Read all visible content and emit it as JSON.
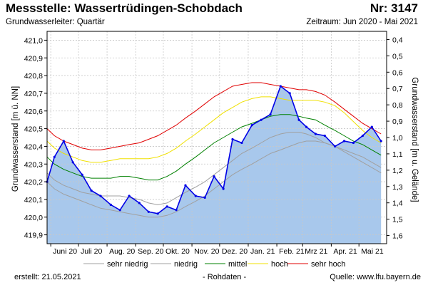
{
  "header": {
    "title": "Messstelle: Wassertrüdingen-Schobdach",
    "number": "Nr: 3147",
    "aquifer": "Grundwasserleiter: Quartär",
    "period": "Zeitraum: Jun 2020 - Mai 2021"
  },
  "footer": {
    "created": "erstellt:  21.05.2021",
    "rawdata": "- Rohdaten -",
    "source": "Quelle: www.lfu.bayern.de"
  },
  "colors": {
    "area": "#a8c8ec",
    "measured": "#0000e6",
    "sehr_niedrig": "#a0a0a0",
    "niedrig": "#a0a0a0",
    "mittel": "#008000",
    "hoch": "#f0e000",
    "sehr_hoch": "#e00000",
    "grid": "#c8c8c8"
  },
  "chart_data": {
    "type": "line",
    "title": "",
    "ylabel": "Grundwasserstand [m ü. NN]",
    "ylabel_right": "Grundwasserstand [m u. Gelände]",
    "ylim": [
      419.85,
      421.05
    ],
    "ylim_right": [
      1.65,
      0.35
    ],
    "yticks": [
      "421,0",
      "420,9",
      "420,8",
      "420,7",
      "420,6",
      "420,5",
      "420,4",
      "420,3",
      "420,2",
      "420,1",
      "420,0",
      "419,9"
    ],
    "yticks_right": [
      "0,4",
      "0,5",
      "0,6",
      "0,7",
      "0,8",
      "0,9",
      "1,0",
      "1,1",
      "1,2",
      "1,3",
      "1,4",
      "1,5",
      "1,6"
    ],
    "xtick_labels": [
      "Juni 20",
      "Juli 20",
      "Aug. 20",
      "Sep. 20",
      "Okt. 20",
      "Nov. 20",
      "Dez. 20",
      "Jan. 21",
      "Feb. 21",
      "Mrz 21",
      "Apr. 21",
      "Mai 21"
    ],
    "legend": {
      "placement": "bottom",
      "labels": [
        "sehr niedrig",
        "niedrig",
        "mittel",
        "hoch",
        "sehr hoch"
      ]
    },
    "x": [
      "2020-05-28",
      "2020-06-05",
      "2020-06-15",
      "2020-06-25",
      "2020-07-05",
      "2020-07-15",
      "2020-07-25",
      "2020-08-05",
      "2020-08-15",
      "2020-08-25",
      "2020-09-05",
      "2020-09-15",
      "2020-09-25",
      "2020-10-05",
      "2020-10-15",
      "2020-10-25",
      "2020-11-05",
      "2020-11-15",
      "2020-11-25",
      "2020-12-05",
      "2020-12-15",
      "2020-12-25",
      "2021-01-05",
      "2021-01-15",
      "2021-01-25",
      "2021-02-05",
      "2021-02-15",
      "2021-02-25",
      "2021-03-05",
      "2021-03-15",
      "2021-03-25",
      "2021-04-05",
      "2021-04-15",
      "2021-04-25",
      "2021-05-05",
      "2021-05-15",
      "2021-05-25"
    ],
    "series": [
      {
        "name": "sehr niedrig",
        "values": [
          420.2,
          420.16,
          420.13,
          420.11,
          420.09,
          420.07,
          420.05,
          420.04,
          420.03,
          420.02,
          420.01,
          420.0,
          420.0,
          420.01,
          420.03,
          420.06,
          420.09,
          420.12,
          420.16,
          420.2,
          420.24,
          420.27,
          420.3,
          420.33,
          420.36,
          420.38,
          420.4,
          420.42,
          420.43,
          420.43,
          420.42,
          420.4,
          420.37,
          420.34,
          420.31,
          420.28,
          420.25
        ]
      },
      {
        "name": "niedrig",
        "values": [
          420.25,
          420.21,
          420.18,
          420.16,
          420.14,
          420.13,
          420.12,
          420.12,
          420.12,
          420.11,
          420.1,
          420.08,
          420.07,
          420.08,
          420.11,
          420.14,
          420.17,
          420.2,
          420.24,
          420.28,
          420.32,
          420.36,
          420.39,
          420.42,
          420.45,
          420.47,
          420.48,
          420.48,
          420.47,
          420.45,
          420.42,
          420.4,
          420.38,
          420.36,
          420.34,
          420.31,
          420.28
        ]
      },
      {
        "name": "mittel",
        "values": [
          420.34,
          420.3,
          420.27,
          420.25,
          420.23,
          420.22,
          420.22,
          420.22,
          420.23,
          420.23,
          420.22,
          420.21,
          420.21,
          420.23,
          420.26,
          420.3,
          420.34,
          420.38,
          420.42,
          420.45,
          420.48,
          420.51,
          420.53,
          420.55,
          420.57,
          420.58,
          420.58,
          420.57,
          420.56,
          420.55,
          420.52,
          420.49,
          420.46,
          420.43,
          420.41,
          420.38,
          420.35
        ]
      },
      {
        "name": "hoch",
        "values": [
          420.43,
          420.39,
          420.36,
          420.34,
          420.32,
          420.31,
          420.31,
          420.32,
          420.33,
          420.33,
          420.33,
          420.33,
          420.34,
          420.36,
          420.39,
          420.43,
          420.47,
          420.51,
          420.55,
          420.59,
          420.62,
          420.65,
          420.67,
          420.68,
          420.68,
          420.67,
          420.66,
          420.66,
          420.66,
          420.66,
          420.65,
          420.63,
          420.59,
          420.54,
          420.49,
          420.45,
          420.42
        ]
      },
      {
        "name": "sehr hoch",
        "values": [
          420.5,
          420.46,
          420.43,
          420.41,
          420.39,
          420.38,
          420.38,
          420.39,
          420.4,
          420.41,
          420.42,
          420.44,
          420.46,
          420.49,
          420.52,
          420.56,
          420.6,
          420.64,
          420.68,
          420.71,
          420.74,
          420.75,
          420.76,
          420.76,
          420.75,
          420.74,
          420.73,
          420.72,
          420.72,
          420.71,
          420.69,
          420.65,
          420.61,
          420.57,
          420.53,
          420.5,
          420.47
        ]
      },
      {
        "name": "",
        "values": [
          420.2,
          420.34,
          420.43,
          420.31,
          420.24,
          420.15,
          420.12,
          420.07,
          420.04,
          420.12,
          420.08,
          420.03,
          420.02,
          420.06,
          420.04,
          420.18,
          420.12,
          420.11,
          420.23,
          420.16,
          420.44,
          420.42,
          420.52,
          420.55,
          420.58,
          420.74,
          420.7,
          420.55,
          420.51,
          420.47,
          420.46,
          420.4,
          420.43,
          420.42,
          420.46,
          420.51,
          420.43
        ]
      }
    ]
  }
}
